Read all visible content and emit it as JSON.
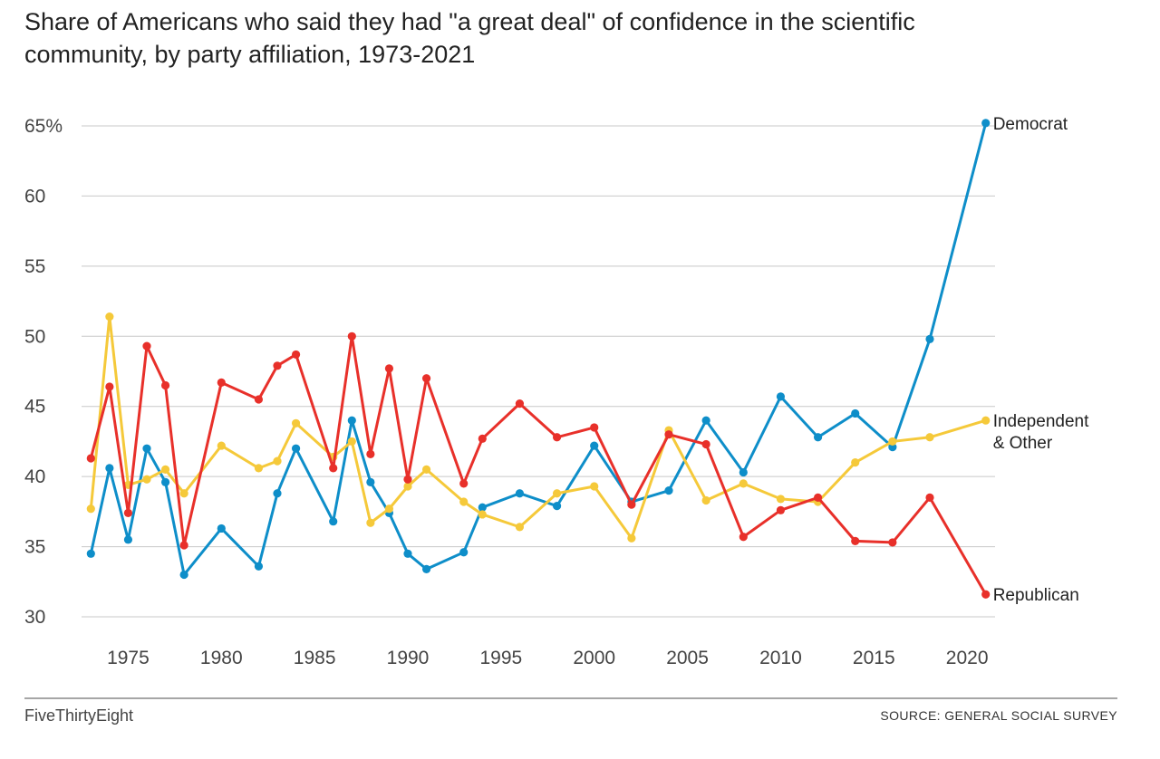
{
  "chart_data": {
    "type": "line",
    "title": "Share of Americans who said they had \"a great deal\" of confidence in the scientific community, by party affiliation, 1973-2021",
    "title_lines": [
      "Share of Americans who said they had \"a great deal\" of confidence in the scientific",
      "community, by party affiliation, 1973-2021"
    ],
    "xlabel": "",
    "ylabel": "",
    "xlim": [
      1972.5,
      2021.5
    ],
    "ylim": [
      30,
      65
    ],
    "y_ticks": [
      {
        "value": 65,
        "label": "65%"
      },
      {
        "value": 60,
        "label": "60"
      },
      {
        "value": 55,
        "label": "55"
      },
      {
        "value": 50,
        "label": "50"
      },
      {
        "value": 45,
        "label": "45"
      },
      {
        "value": 40,
        "label": "40"
      },
      {
        "value": 35,
        "label": "35"
      },
      {
        "value": 30,
        "label": "30"
      }
    ],
    "x_ticks": [
      {
        "value": 1975,
        "label": "1975"
      },
      {
        "value": 1980,
        "label": "1980"
      },
      {
        "value": 1985,
        "label": "1985"
      },
      {
        "value": 1990,
        "label": "1990"
      },
      {
        "value": 1995,
        "label": "1995"
      },
      {
        "value": 2000,
        "label": "2000"
      },
      {
        "value": 2005,
        "label": "2005"
      },
      {
        "value": 2010,
        "label": "2010"
      },
      {
        "value": 2015,
        "label": "2015"
      },
      {
        "value": 2020,
        "label": "2020"
      }
    ],
    "grid": true,
    "series": [
      {
        "name": "Republican",
        "label_lines": [
          "Republican"
        ],
        "color": "#e8302a",
        "points": [
          [
            1973,
            41.3
          ],
          [
            1974,
            46.4
          ],
          [
            1975,
            37.4
          ],
          [
            1976,
            49.3
          ],
          [
            1977,
            46.5
          ],
          [
            1978,
            35.1
          ],
          [
            1980,
            46.7
          ],
          [
            1982,
            45.5
          ],
          [
            1983,
            47.9
          ],
          [
            1984,
            48.7
          ],
          [
            1986,
            40.6
          ],
          [
            1987,
            50.0
          ],
          [
            1988,
            41.6
          ],
          [
            1989,
            47.7
          ],
          [
            1990,
            39.8
          ],
          [
            1991,
            47.0
          ],
          [
            1993,
            39.5
          ],
          [
            1994,
            42.7
          ],
          [
            1996,
            45.2
          ],
          [
            1998,
            42.8
          ],
          [
            2000,
            43.5
          ],
          [
            2002,
            38.0
          ],
          [
            2004,
            43.0
          ],
          [
            2006,
            42.3
          ],
          [
            2008,
            35.7
          ],
          [
            2010,
            37.6
          ],
          [
            2012,
            38.5
          ],
          [
            2014,
            35.4
          ],
          [
            2016,
            35.3
          ],
          [
            2018,
            38.5
          ],
          [
            2021,
            31.6
          ]
        ]
      },
      {
        "name": "Democrat",
        "label_lines": [
          "Democrat"
        ],
        "color": "#0e8ec9",
        "points": [
          [
            1973,
            34.5
          ],
          [
            1974,
            40.6
          ],
          [
            1975,
            35.5
          ],
          [
            1976,
            42.0
          ],
          [
            1977,
            39.6
          ],
          [
            1978,
            33.0
          ],
          [
            1980,
            36.3
          ],
          [
            1982,
            33.6
          ],
          [
            1983,
            38.8
          ],
          [
            1984,
            42.0
          ],
          [
            1986,
            36.8
          ],
          [
            1987,
            44.0
          ],
          [
            1988,
            39.6
          ],
          [
            1989,
            37.4
          ],
          [
            1990,
            34.5
          ],
          [
            1991,
            33.4
          ],
          [
            1993,
            34.6
          ],
          [
            1994,
            37.8
          ],
          [
            1996,
            38.8
          ],
          [
            1998,
            37.9
          ],
          [
            2000,
            42.2
          ],
          [
            2002,
            38.2
          ],
          [
            2004,
            39.0
          ],
          [
            2006,
            44.0
          ],
          [
            2008,
            40.3
          ],
          [
            2010,
            45.7
          ],
          [
            2012,
            42.8
          ],
          [
            2014,
            44.5
          ],
          [
            2016,
            42.1
          ],
          [
            2018,
            49.8
          ],
          [
            2021,
            65.2
          ]
        ]
      },
      {
        "name": "Independent & Other",
        "label_lines": [
          "Independent",
          "& Other"
        ],
        "color": "#f5c93a",
        "points": [
          [
            1973,
            37.7
          ],
          [
            1974,
            51.4
          ],
          [
            1975,
            39.4
          ],
          [
            1976,
            39.8
          ],
          [
            1977,
            40.5
          ],
          [
            1978,
            38.8
          ],
          [
            1980,
            42.2
          ],
          [
            1982,
            40.6
          ],
          [
            1983,
            41.1
          ],
          [
            1984,
            43.8
          ],
          [
            1986,
            41.4
          ],
          [
            1987,
            42.5
          ],
          [
            1988,
            36.7
          ],
          [
            1989,
            37.7
          ],
          [
            1990,
            39.3
          ],
          [
            1991,
            40.5
          ],
          [
            1993,
            38.2
          ],
          [
            1994,
            37.3
          ],
          [
            1996,
            36.4
          ],
          [
            1998,
            38.8
          ],
          [
            2000,
            39.3
          ],
          [
            2002,
            35.6
          ],
          [
            2004,
            43.3
          ],
          [
            2006,
            38.3
          ],
          [
            2008,
            39.5
          ],
          [
            2010,
            38.4
          ],
          [
            2012,
            38.2
          ],
          [
            2014,
            41.0
          ],
          [
            2016,
            42.5
          ],
          [
            2018,
            42.8
          ],
          [
            2021,
            44.0
          ]
        ]
      }
    ]
  },
  "footer": {
    "brand": "FiveThirtyEight",
    "source": "SOURCE: GENERAL SOCIAL SURVEY"
  }
}
